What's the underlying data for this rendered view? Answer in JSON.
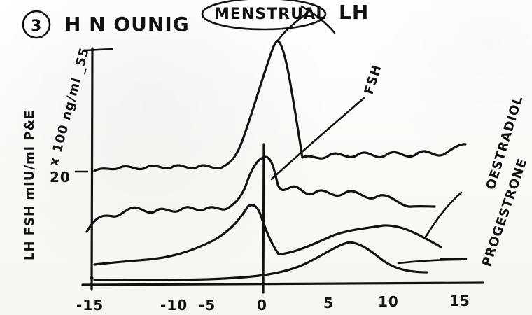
{
  "figure": {
    "title_number": "3",
    "title_text": "H N OUNIG",
    "title_circled": "MENSTRUAL",
    "title_right": "LH",
    "y_axis_label": "LH FSH mIU/ml P&E",
    "y_axis_sub": "x 100 ng/ml _55",
    "y_tick_20": "20",
    "x_ticks": [
      "-15",
      "-10",
      "-5",
      "0",
      "5",
      "10",
      "15"
    ],
    "annotations": {
      "fsh": "FSH",
      "estradiol": "OESTRADIOL",
      "progesterone": "PROGESTRONE"
    }
  }
}
